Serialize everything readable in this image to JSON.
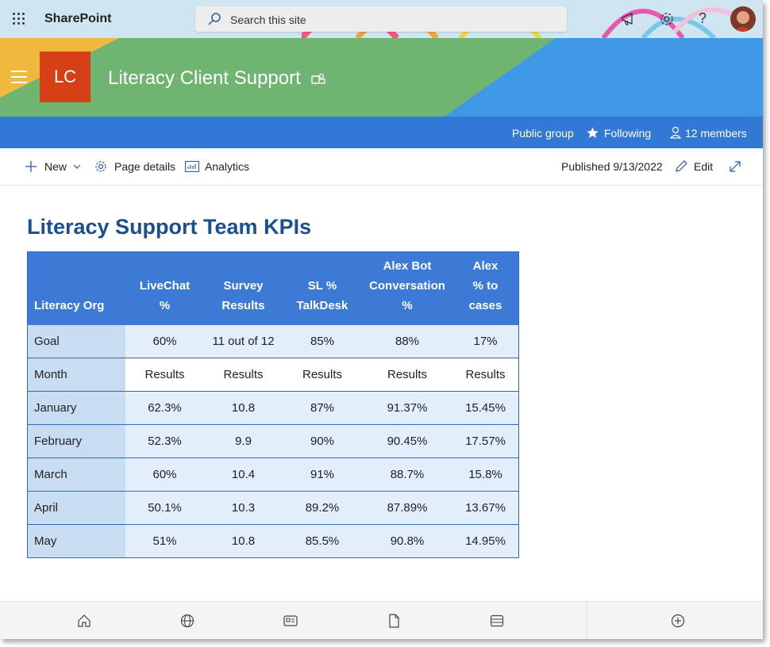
{
  "suitebar": {
    "app_name": "SharePoint",
    "search_placeholder": "Search this site",
    "help_label": "?"
  },
  "header": {
    "logo_initials": "LC",
    "site_title": "Literacy Client Support",
    "group_type": "Public group",
    "following_label": "Following",
    "members_label": "12 members"
  },
  "command_bar": {
    "new_label": "New",
    "page_details_label": "Page details",
    "analytics_label": "Analytics",
    "published_label": "Published 9/13/2022",
    "edit_label": "Edit"
  },
  "page": {
    "title": "Literacy Support Team KPIs"
  },
  "table": {
    "headers": [
      [
        "Literacy Org"
      ],
      [
        "LiveChat",
        "%"
      ],
      [
        "Survey",
        "Results"
      ],
      [
        "SL %",
        "TalkDesk"
      ],
      [
        "Alex Bot",
        "Conversation",
        "%"
      ],
      [
        "Alex",
        "% to",
        "cases"
      ]
    ],
    "rows": [
      [
        "Goal",
        "60%",
        "11 out of 12",
        "85%",
        "88%",
        "17%"
      ],
      [
        "Month",
        "Results",
        "Results",
        "Results",
        "Results",
        "Results"
      ],
      [
        "January",
        "62.3%",
        "10.8",
        "87%",
        "91.37%",
        "15.45%"
      ],
      [
        "February",
        "52.3%",
        "9.9",
        "90%",
        "90.45%",
        "17.57%"
      ],
      [
        "March",
        "60%",
        "10.4",
        "91%",
        "88.7%",
        "15.8%"
      ],
      [
        "April",
        "50.1%",
        "10.3",
        "89.2%",
        "87.89%",
        "13.67%"
      ],
      [
        "May",
        "51%",
        "10.8",
        "85.5%",
        "90.8%",
        "14.95%"
      ]
    ]
  },
  "colors": {
    "header_blue": "#3279d6",
    "table_header": "#3c7ad6",
    "title_blue": "#1b4f8e",
    "logo_orange": "#d64016"
  }
}
